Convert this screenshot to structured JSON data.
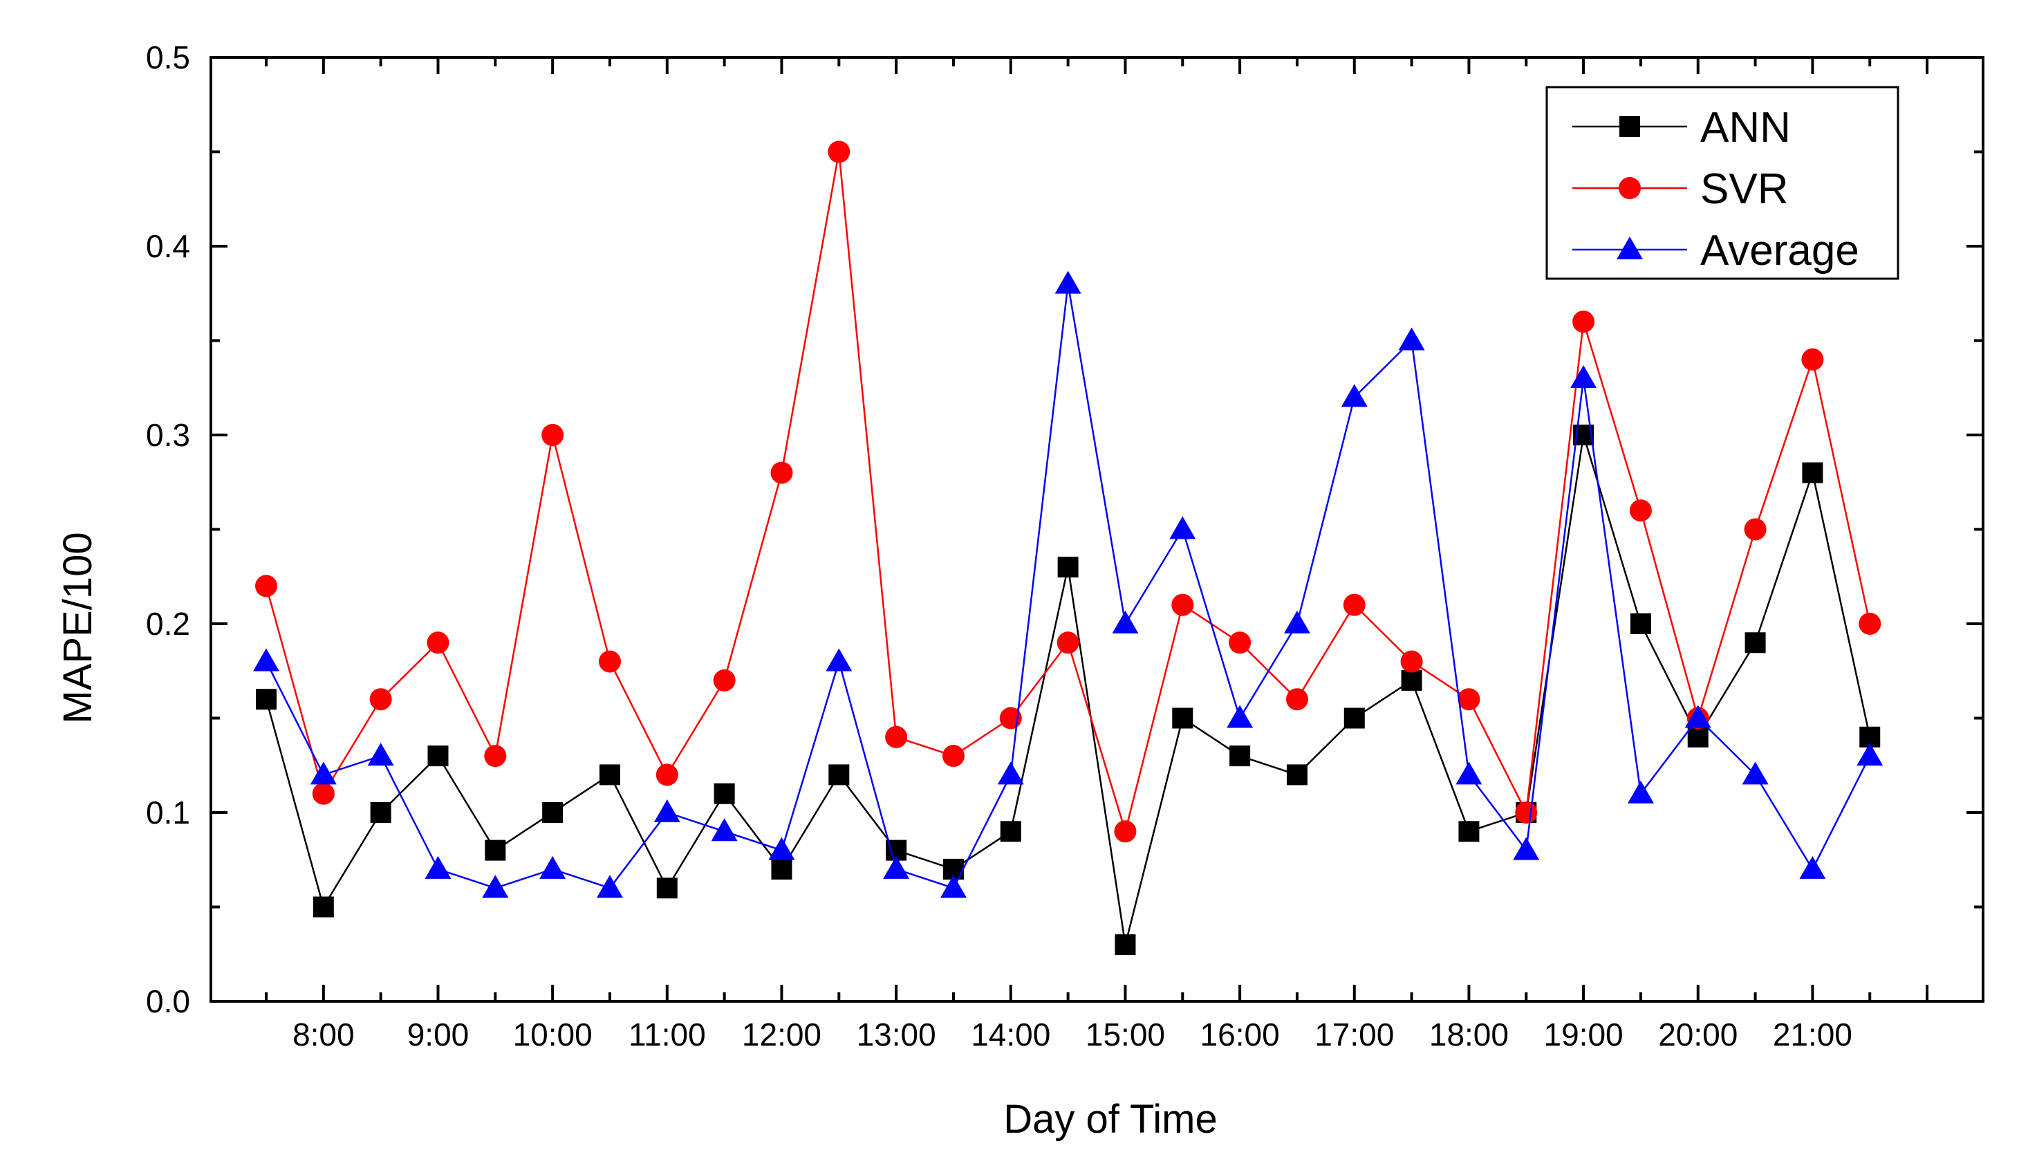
{
  "chart_data": {
    "type": "line",
    "xlabel": "Day of Time",
    "ylabel": "MAPE/100",
    "ylim": [
      0.0,
      0.5
    ],
    "yticks": [
      "0.0",
      "0.1",
      "0.2",
      "0.3",
      "0.4",
      "0.5"
    ],
    "categories": [
      "",
      "8:00",
      "",
      "9:00",
      "",
      "10:00",
      "",
      "11:00",
      "",
      "12:00",
      "",
      "13:00",
      "",
      "14:00",
      "",
      "15:00",
      "",
      "16:00",
      "",
      "17:00",
      "",
      "18:00",
      "",
      "19:00",
      "",
      "20:00",
      "",
      "21:00",
      ""
    ],
    "xtick_labels": [
      "8:00",
      "9:00",
      "10:00",
      "11:00",
      "12:00",
      "13:00",
      "14:00",
      "15:00",
      "16:00",
      "17:00",
      "18:00",
      "19:00",
      "20:00",
      "21:00"
    ],
    "legend_position": "top-right",
    "series": [
      {
        "name": "ANN",
        "color": "#000000",
        "marker": "square",
        "values": [
          0.16,
          0.05,
          0.1,
          0.13,
          0.08,
          0.1,
          0.12,
          0.06,
          0.11,
          0.07,
          0.12,
          0.08,
          0.07,
          0.09,
          0.23,
          0.03,
          0.15,
          0.13,
          0.12,
          0.15,
          0.17,
          0.09,
          0.1,
          0.3,
          0.2,
          0.14,
          0.19,
          0.28,
          0.14
        ]
      },
      {
        "name": "SVR",
        "color": "#ff0000",
        "marker": "circle",
        "values": [
          0.22,
          0.11,
          0.16,
          0.19,
          0.13,
          0.3,
          0.18,
          0.12,
          0.17,
          0.28,
          0.45,
          0.14,
          0.13,
          0.15,
          0.19,
          0.09,
          0.21,
          0.19,
          0.16,
          0.21,
          0.18,
          0.16,
          0.1,
          0.36,
          0.26,
          0.15,
          0.25,
          0.34,
          0.2
        ]
      },
      {
        "name": "Average",
        "color": "#0000ff",
        "marker": "triangle",
        "values": [
          0.18,
          0.12,
          0.13,
          0.07,
          0.06,
          0.07,
          0.06,
          0.1,
          0.09,
          0.08,
          0.18,
          0.07,
          0.06,
          0.12,
          0.38,
          0.2,
          0.25,
          0.15,
          0.2,
          0.32,
          0.35,
          0.12,
          0.08,
          0.33,
          0.11,
          0.15,
          0.12,
          0.07,
          0.13
        ]
      }
    ]
  }
}
